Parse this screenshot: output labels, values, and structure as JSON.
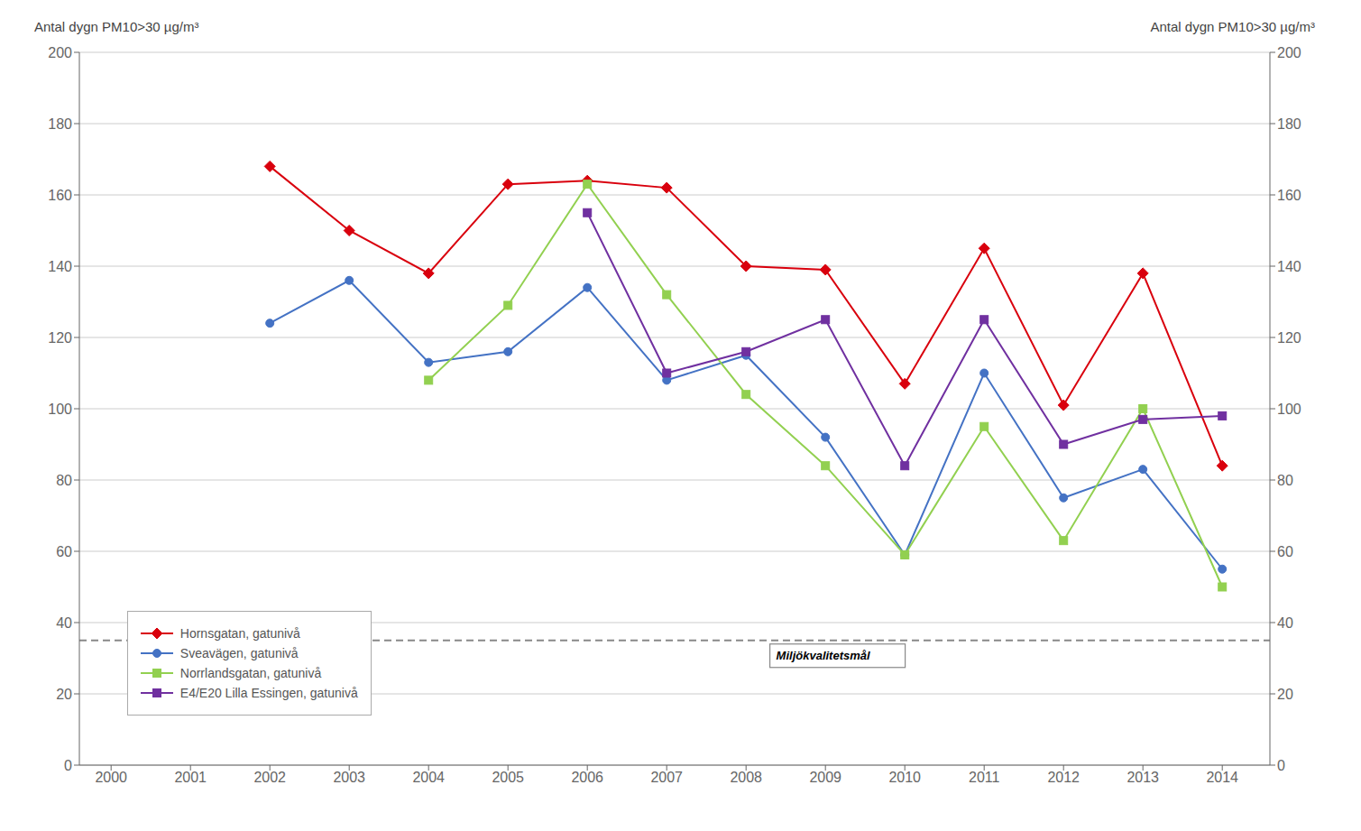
{
  "chart_data": {
    "type": "line",
    "y_label": "Antal dygn PM10>30 µg/m³",
    "y2_label": "Antal dygn PM10>30 µg/m³",
    "x": [
      2002,
      2003,
      2004,
      2005,
      2006,
      2007,
      2008,
      2009,
      2010,
      2011,
      2012,
      2013,
      2014
    ],
    "xlim": [
      1999.6,
      2014.6
    ],
    "xticks": [
      2000,
      2001,
      2002,
      2003,
      2004,
      2005,
      2006,
      2007,
      2008,
      2009,
      2010,
      2011,
      2012,
      2013,
      2014
    ],
    "ylim": [
      0,
      200
    ],
    "yticks": [
      0,
      20,
      40,
      60,
      80,
      100,
      120,
      140,
      160,
      180,
      200
    ],
    "y2lim": [
      0,
      200
    ],
    "y2ticks": [
      0,
      20,
      40,
      60,
      80,
      100,
      120,
      140,
      160,
      180,
      200
    ],
    "grid": true,
    "legend": "lower left",
    "annotations": [
      {
        "text": "Miljökvalitetsmål",
        "x": 2008.3,
        "y": 35
      }
    ],
    "series": [
      {
        "name": "Hornsgatan, gatunivå",
        "color": "#d9000d",
        "marker": "diamond",
        "values": [
          168,
          150,
          138,
          163,
          164,
          162,
          140,
          139,
          107,
          145,
          101,
          138,
          84
        ]
      },
      {
        "name": "Sveavägen, gatunivå",
        "color": "#4472c4",
        "marker": "circle",
        "values": [
          124,
          136,
          113,
          116,
          134,
          108,
          115,
          92,
          59,
          110,
          75,
          83,
          55
        ]
      },
      {
        "name": "Norrlandsgatan, gatunivå",
        "color": "#92d050",
        "marker": "square",
        "values": [
          null,
          null,
          108,
          129,
          163,
          132,
          104,
          84,
          59,
          95,
          63,
          100,
          50
        ]
      },
      {
        "name": "E4/E20 Lilla Essingen, gatunivå",
        "color": "#7030a0",
        "marker": "square",
        "values": [
          null,
          null,
          null,
          null,
          155,
          110,
          116,
          125,
          84,
          125,
          90,
          97,
          98
        ]
      }
    ]
  }
}
